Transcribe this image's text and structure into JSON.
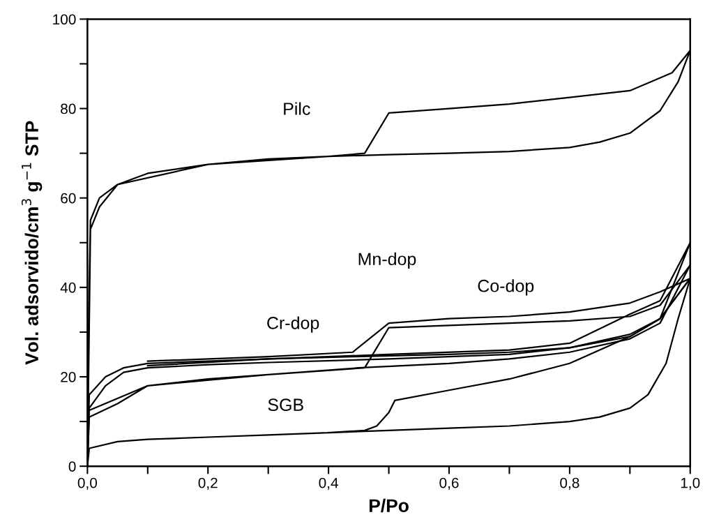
{
  "chart_data": {
    "type": "line",
    "xlabel": "P/Po",
    "ylabel": "Vol. adsorvido/cm$^{3}$ g$^{−1}$ STP",
    "xlim": [
      0,
      1.0
    ],
    "ylim": [
      0,
      100
    ],
    "xticks": [
      {
        "value": 0,
        "label": "0,0"
      },
      {
        "value": 0.1,
        "label": null
      },
      {
        "value": 0.2,
        "label": "0,2"
      },
      {
        "value": 0.3,
        "label": null
      },
      {
        "value": 0.4,
        "label": "0,4"
      },
      {
        "value": 0.5,
        "label": null
      },
      {
        "value": 0.6,
        "label": "0,6"
      },
      {
        "value": 0.7,
        "label": null
      },
      {
        "value": 0.8,
        "label": "0,8"
      },
      {
        "value": 0.9,
        "label": null
      },
      {
        "value": 1.0,
        "label": "1,0"
      }
    ],
    "yticks": [
      0,
      {
        "value": 10,
        "label": null
      },
      20,
      {
        "value": 30,
        "label": null
      },
      40,
      {
        "value": 50,
        "label": null
      },
      60,
      {
        "value": 70,
        "label": null
      },
      80,
      {
        "value": 90,
        "label": null
      },
      100
    ],
    "grid": false,
    "marker": "none",
    "line_style": "solid",
    "series": [
      {
        "color": "#000000",
        "x": [
          0,
          0.005,
          0.02,
          0.05,
          0.1,
          0.2,
          0.3,
          0.4,
          0.5,
          0.6,
          0.7,
          0.8,
          0.85,
          0.9,
          0.95,
          0.98,
          1.0,
          0.97,
          0.9,
          0.8,
          0.7,
          0.6,
          0.5,
          0.46,
          0.4,
          0.2,
          0.05,
          0.02,
          0.005,
          0.0
        ],
        "values": [
          0,
          53,
          58,
          63,
          65.5,
          67.5,
          68.7,
          69.3,
          69.7,
          70,
          70.4,
          71.3,
          72.5,
          74.5,
          79.5,
          86,
          93,
          88,
          84,
          82.5,
          81,
          80,
          79,
          70,
          69.3,
          67.5,
          63,
          60,
          55,
          15
        ]
      },
      {
        "color": "#000000",
        "x": [
          0,
          0.003,
          0.03,
          0.06,
          0.1,
          0.2,
          0.3,
          0.44,
          0.6,
          0.7,
          0.8,
          0.9,
          0.95,
          1.0,
          0.95,
          0.9,
          0.8,
          0.7,
          0.6,
          0.5,
          0.44,
          0.3,
          0.1
        ],
        "values": [
          0,
          16,
          20,
          22,
          23,
          23.5,
          24,
          24.5,
          25,
          25.5,
          26.5,
          29,
          33,
          42,
          39,
          36.5,
          34.5,
          33.5,
          33,
          32,
          25.5,
          24.5,
          23.5
        ]
      },
      {
        "color": "#000000",
        "x": [
          0,
          0.003,
          0.05,
          0.1,
          0.2,
          0.3,
          0.45,
          0.6,
          0.7,
          0.8,
          0.9,
          0.95,
          1.0,
          0.95,
          0.9,
          0.8,
          0.6,
          0.5,
          0.46,
          0.3,
          0.1,
          0.003
        ],
        "values": [
          0,
          11,
          14,
          18,
          19.5,
          20.5,
          22,
          23,
          24,
          25.5,
          28.5,
          32,
          45,
          36,
          33.5,
          32.5,
          31.5,
          31,
          22,
          20.5,
          18,
          12.5
        ]
      },
      {
        "color": "#000000",
        "x": [
          0,
          0.003,
          0.03,
          0.06,
          0.1,
          0.2,
          0.3,
          0.5,
          0.6,
          0.7,
          0.8,
          0.9,
          0.95,
          1.0,
          0.95,
          0.9,
          0.8,
          0.7,
          0.5,
          0.3,
          0.1
        ],
        "values": [
          0,
          13,
          18,
          21,
          22,
          22.7,
          23.2,
          24,
          24.5,
          25,
          26.5,
          29.5,
          33,
          50,
          37,
          34,
          27.5,
          26,
          25,
          24,
          22.5
        ]
      },
      {
        "color": "#000000",
        "x": [
          0,
          0.003,
          0.05,
          0.1,
          0.2,
          0.3,
          0.4,
          0.5,
          0.6,
          0.7,
          0.8,
          0.85,
          0.9,
          0.93,
          0.96,
          0.98,
          1.0,
          0.95,
          0.9,
          0.8,
          0.7,
          0.6,
          0.51,
          0.5,
          0.48,
          0.46,
          0.4
        ],
        "values": [
          0,
          4,
          5.5,
          6,
          6.5,
          7,
          7.5,
          8,
          8.5,
          9,
          10,
          11,
          13,
          16,
          23,
          33,
          42,
          33,
          29,
          23,
          19.5,
          17,
          14.7,
          12,
          9,
          8,
          7.5
        ]
      }
    ],
    "annotations": [
      "Pilc",
      "Mn-dop",
      "Co-dop",
      "Cr-dop",
      "SGB"
    ]
  }
}
